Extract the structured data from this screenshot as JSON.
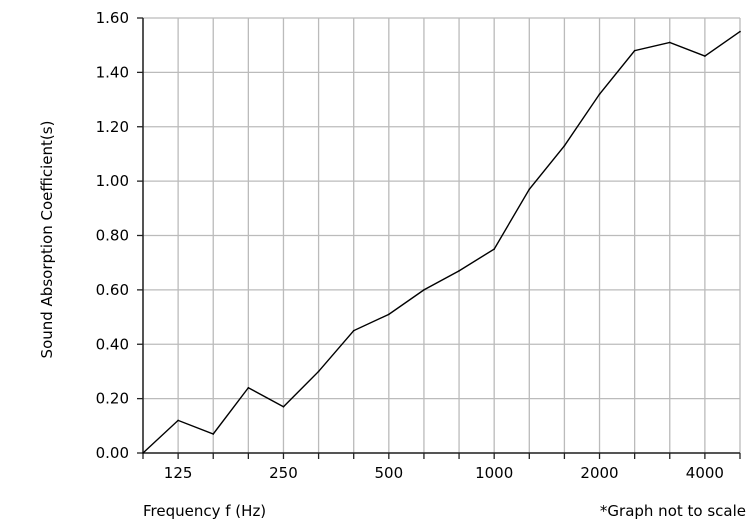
{
  "chart_data": {
    "type": "line",
    "xlabel": "Frequency f (Hz)",
    "ylabel": "Sound Absorption Coefficient(s)",
    "note": "*Graph not to scale",
    "ylim": [
      0,
      1.6
    ],
    "yticks": [
      "0.00",
      "0.20",
      "0.40",
      "0.60",
      "0.80",
      "1.00",
      "1.20",
      "1.40",
      "1.60"
    ],
    "xtick_labels": [
      "125",
      "250",
      "500",
      "1000",
      "2000",
      "4000"
    ],
    "grid": true,
    "line_color": "#000000",
    "grid_color": "#bbbbbb",
    "x_bands": [
      "",
      "125",
      "",
      "",
      "250",
      "",
      "",
      "500",
      "",
      "",
      "1000",
      "",
      "",
      "2000",
      "",
      "",
      "4000",
      ""
    ],
    "series": [
      {
        "values": [
          0.0,
          0.12,
          0.07,
          0.24,
          0.17,
          0.3,
          0.45,
          0.51,
          0.6,
          0.67,
          0.75,
          0.97,
          1.13,
          1.32,
          1.48,
          1.51,
          1.46,
          1.55
        ]
      }
    ]
  }
}
